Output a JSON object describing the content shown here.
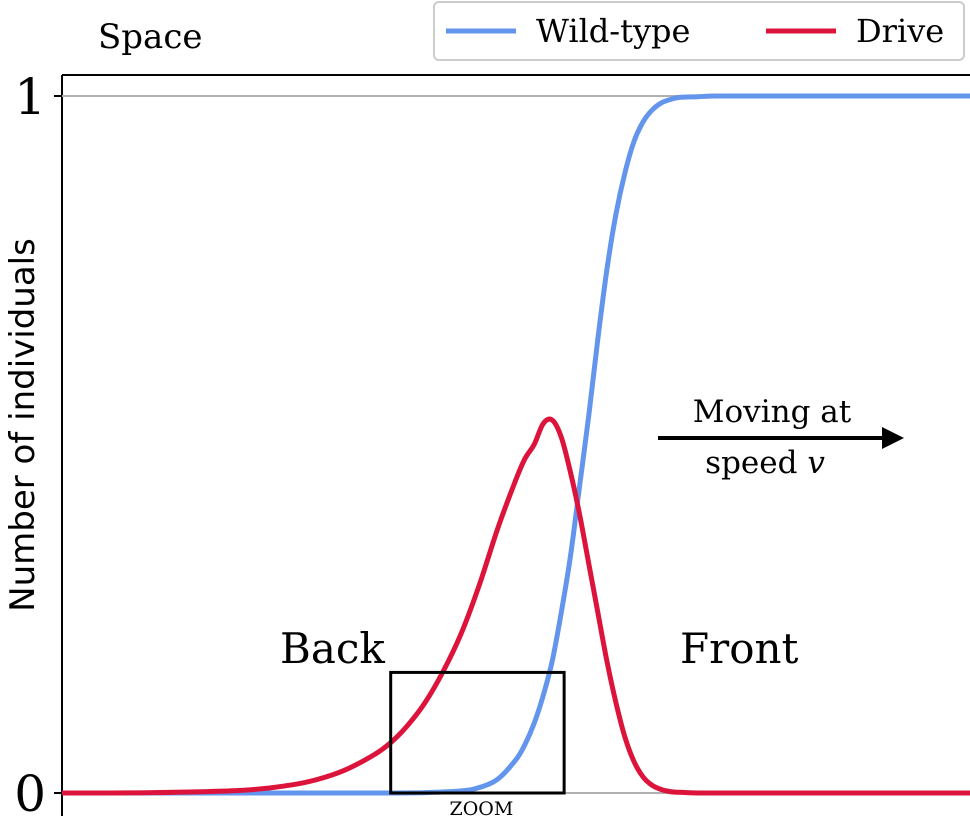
{
  "chart_data": {
    "type": "line",
    "title": "Space",
    "xlabel": "",
    "ylabel": "Number of individuals",
    "xlim": [
      0,
      100
    ],
    "ylim": [
      0,
      1
    ],
    "yticks": [
      {
        "value": 0,
        "label": "0"
      },
      {
        "value": 1,
        "label": "1"
      }
    ],
    "legend": {
      "placement": "top-right",
      "entries": [
        "Wild-type",
        "Drive"
      ]
    },
    "series": [
      {
        "name": "Wild-type",
        "color": "#6495ED",
        "x": [
          0,
          10,
          20,
          30,
          36,
          40,
          44,
          46,
          48,
          50,
          51,
          52,
          53,
          54,
          55,
          56,
          57,
          58,
          59,
          60,
          61,
          62,
          63,
          64,
          65,
          66,
          67,
          68,
          70,
          72,
          75,
          80,
          90,
          100
        ],
        "y": [
          0,
          0,
          0,
          0,
          0,
          0.0005,
          0.003,
          0.008,
          0.02,
          0.048,
          0.07,
          0.1,
          0.14,
          0.19,
          0.26,
          0.34,
          0.44,
          0.54,
          0.65,
          0.75,
          0.83,
          0.89,
          0.935,
          0.963,
          0.98,
          0.99,
          0.995,
          0.998,
          0.999,
          1,
          1,
          1,
          1,
          1
        ]
      },
      {
        "name": "Drive",
        "color": "#DC143C",
        "x": [
          0,
          10,
          20,
          25,
          28,
          31,
          34,
          36,
          38,
          40,
          42,
          44,
          46,
          48,
          50,
          51,
          52,
          53,
          54,
          55,
          56,
          57,
          58,
          59,
          60,
          61,
          62,
          63,
          64,
          65,
          66,
          67,
          68,
          70,
          72,
          75,
          80,
          90,
          100
        ],
        "y": [
          0,
          0.0005,
          0.004,
          0.011,
          0.019,
          0.032,
          0.052,
          0.07,
          0.096,
          0.13,
          0.175,
          0.23,
          0.3,
          0.38,
          0.45,
          0.48,
          0.5,
          0.53,
          0.535,
          0.51,
          0.46,
          0.4,
          0.33,
          0.26,
          0.19,
          0.13,
          0.08,
          0.045,
          0.023,
          0.011,
          0.005,
          0.002,
          0.001,
          0,
          0,
          0,
          0,
          0,
          0
        ]
      }
    ],
    "annotations": {
      "zoom_box": {
        "x": [
          36.2,
          55.3
        ],
        "y": [
          0,
          0.173
        ],
        "label": "ZOOM"
      },
      "back_label": "Back",
      "front_label": "Front",
      "arrow_text_line1": "Moving at",
      "arrow_text_line2_prefix": "speed ",
      "arrow_text_line2_var": "v"
    }
  }
}
